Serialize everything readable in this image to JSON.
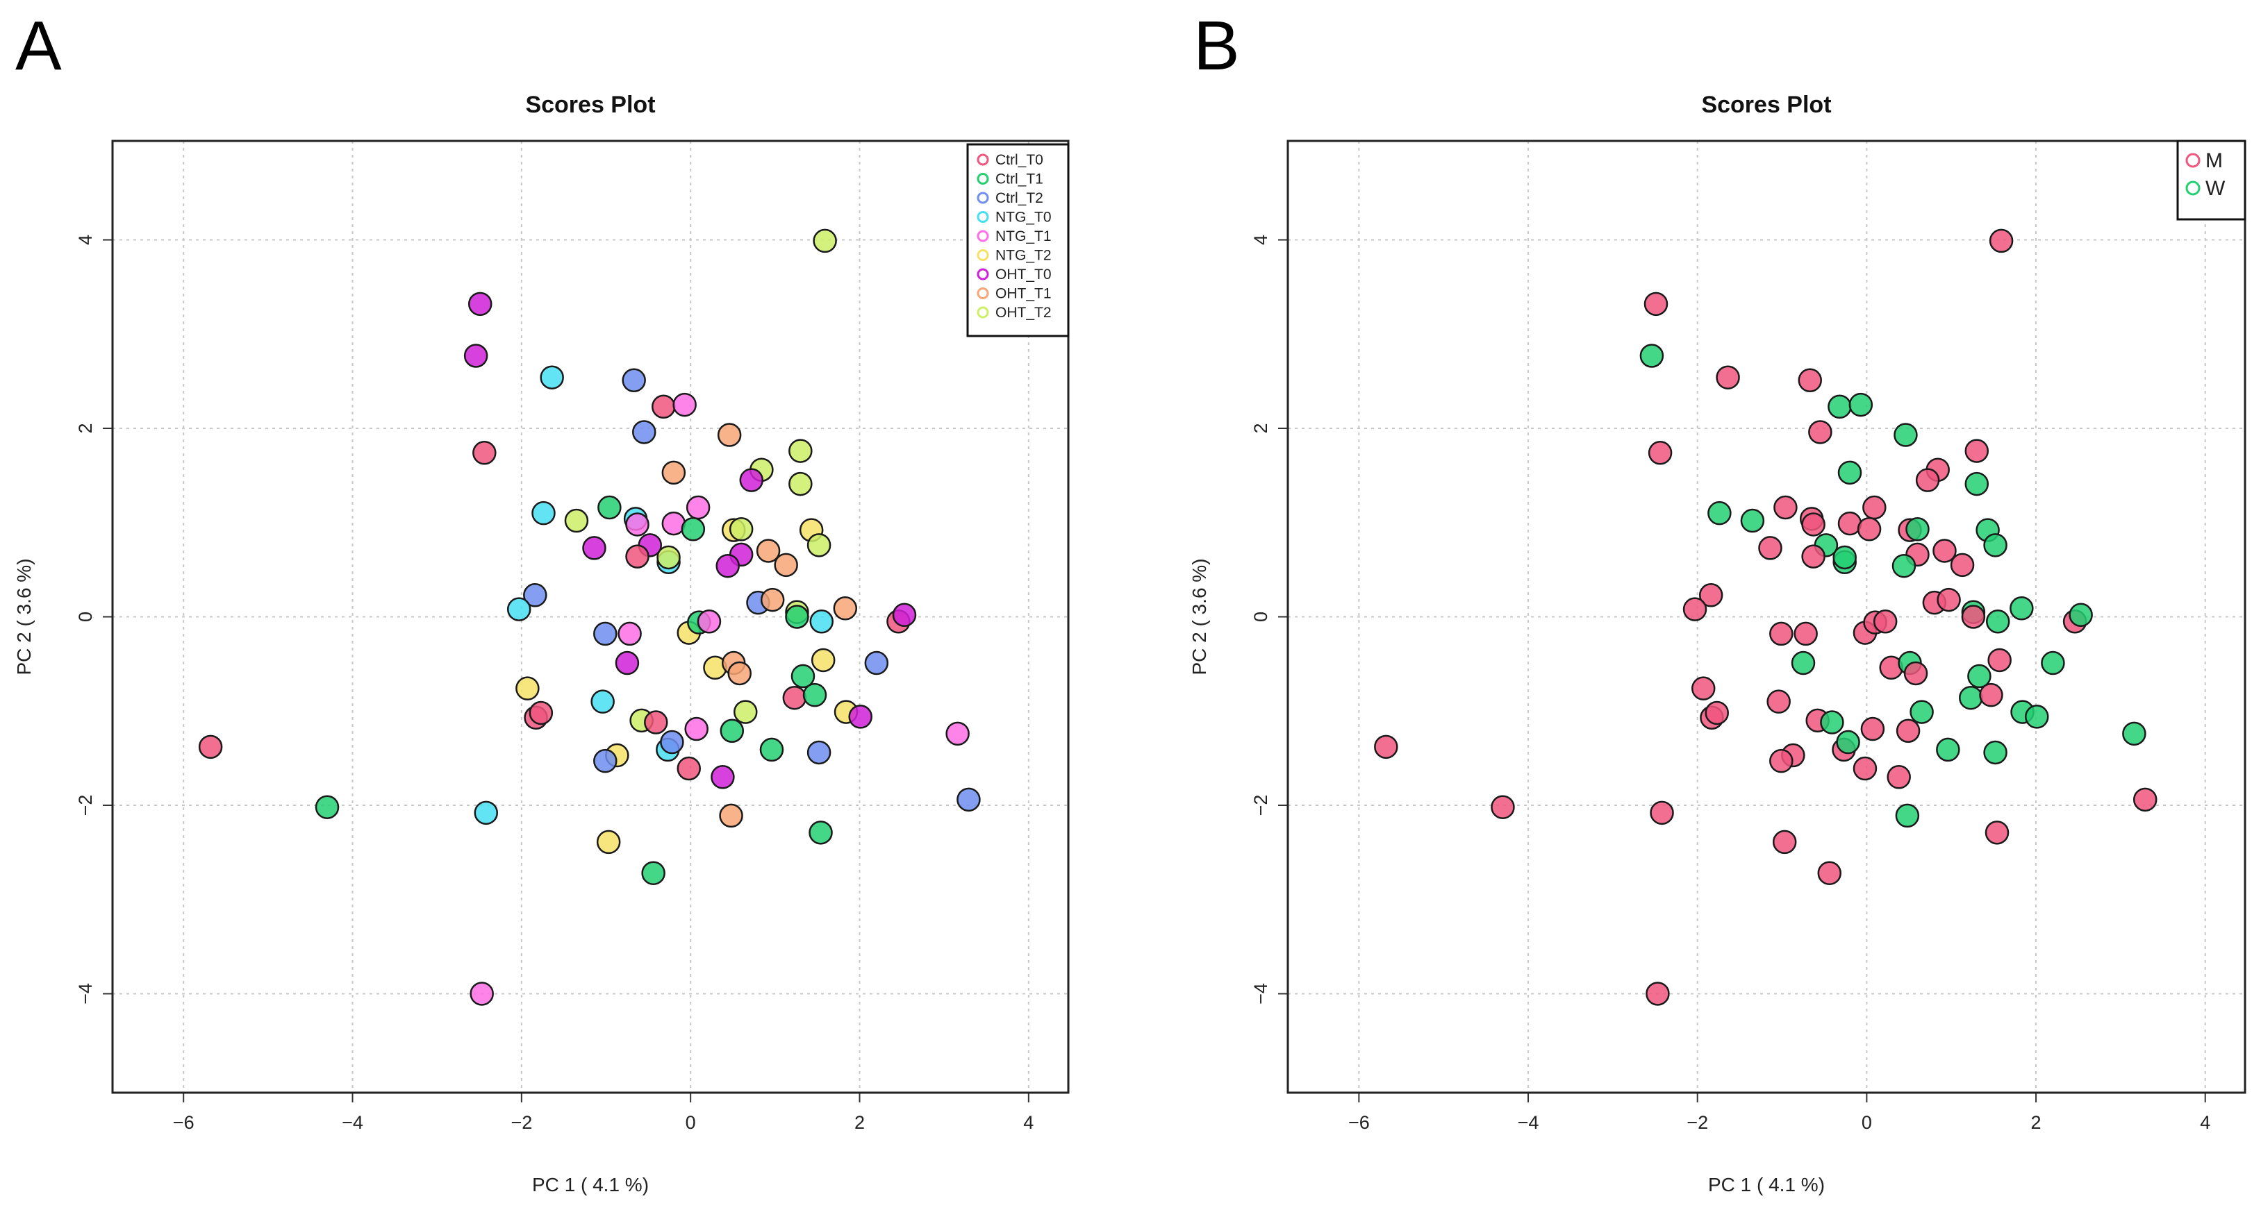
{
  "chart_data": [
    {
      "panel": "A",
      "type": "scatter",
      "title": "Scores Plot",
      "xlabel": "PC 1 ( 4.1 %)",
      "ylabel": "PC 2 ( 3.6 %)",
      "xlim": [
        -6.84,
        4.47
      ],
      "ylim": [
        -5.05,
        5.05
      ],
      "xticks": [
        -6,
        -4,
        -2,
        0,
        2,
        4
      ],
      "yticks": [
        -4,
        -2,
        0,
        2,
        4
      ],
      "grid": true,
      "legend_position": "top-right",
      "groups": [
        "Ctrl_T0",
        "Ctrl_T1",
        "Ctrl_T2",
        "NTG_T0",
        "NTG_T1",
        "NTG_T2",
        "OHT_T0",
        "OHT_T1",
        "OHT_T2"
      ],
      "colors": [
        "#f0567e",
        "#22d072",
        "#6e8ef0",
        "#46dff2",
        "#ff6ee6",
        "#f6e166",
        "#d021d8",
        "#f7a676",
        "#cdef66"
      ],
      "group_key": "group"
    },
    {
      "panel": "B",
      "type": "scatter",
      "title": "Scores Plot",
      "xlabel": "PC 1 ( 4.1 %)",
      "ylabel": "PC 2 ( 3.6 %)",
      "xlim": [
        -6.84,
        4.47
      ],
      "ylim": [
        -5.05,
        5.05
      ],
      "xticks": [
        -6,
        -4,
        -2,
        0,
        2,
        4
      ],
      "yticks": [
        -4,
        -2,
        0,
        2,
        4
      ],
      "grid": true,
      "legend_position": "top-right",
      "groups": [
        "M",
        "W"
      ],
      "colors": [
        "#f0567e",
        "#22d072"
      ],
      "group_key": "sex"
    }
  ],
  "points": [
    [
      1.59,
      3.99,
      8,
      "M"
    ],
    [
      -2.49,
      3.32,
      6,
      "M"
    ],
    [
      -2.54,
      2.77,
      6,
      "W"
    ],
    [
      -1.64,
      2.54,
      3,
      "M"
    ],
    [
      -0.67,
      2.51,
      2,
      "M"
    ],
    [
      -0.32,
      2.23,
      0,
      "W"
    ],
    [
      -0.07,
      2.25,
      4,
      "W"
    ],
    [
      -0.55,
      1.96,
      2,
      "M"
    ],
    [
      0.46,
      1.93,
      7,
      "W"
    ],
    [
      -2.44,
      1.74,
      0,
      "M"
    ],
    [
      1.3,
      1.76,
      8,
      "M"
    ],
    [
      0.84,
      1.56,
      8,
      "M"
    ],
    [
      -0.2,
      1.53,
      7,
      "W"
    ],
    [
      0.72,
      1.45,
      6,
      "M"
    ],
    [
      1.3,
      1.41,
      8,
      "W"
    ],
    [
      -1.74,
      1.1,
      3,
      "W"
    ],
    [
      -1.35,
      1.02,
      8,
      "W"
    ],
    [
      -0.96,
      1.16,
      1,
      "M"
    ],
    [
      -0.65,
      1.04,
      3,
      "M"
    ],
    [
      -0.63,
      0.98,
      4,
      "M"
    ],
    [
      -0.2,
      0.99,
      4,
      "M"
    ],
    [
      0.09,
      1.16,
      4,
      "M"
    ],
    [
      0.03,
      0.93,
      1,
      "M"
    ],
    [
      -1.14,
      0.73,
      6,
      "M"
    ],
    [
      -0.48,
      0.76,
      6,
      "W"
    ],
    [
      -0.63,
      0.64,
      0,
      "M"
    ],
    [
      -0.26,
      0.58,
      3,
      "W"
    ],
    [
      -0.26,
      0.63,
      8,
      "W"
    ],
    [
      0.51,
      0.92,
      5,
      "M"
    ],
    [
      0.6,
      0.93,
      8,
      "W"
    ],
    [
      1.43,
      0.92,
      5,
      "W"
    ],
    [
      1.52,
      0.76,
      8,
      "W"
    ],
    [
      0.92,
      0.7,
      7,
      "M"
    ],
    [
      1.13,
      0.55,
      7,
      "M"
    ],
    [
      0.6,
      0.66,
      6,
      "M"
    ],
    [
      0.44,
      0.54,
      6,
      "W"
    ],
    [
      -1.84,
      0.23,
      2,
      "M"
    ],
    [
      -2.03,
      0.08,
      3,
      "M"
    ],
    [
      0.8,
      0.15,
      2,
      "M"
    ],
    [
      0.97,
      0.18,
      7,
      "M"
    ],
    [
      1.26,
      0.05,
      8,
      "W"
    ],
    [
      1.26,
      0.0,
      1,
      "M"
    ],
    [
      1.55,
      -0.05,
      3,
      "W"
    ],
    [
      1.83,
      0.09,
      7,
      "W"
    ],
    [
      2.46,
      -0.05,
      0,
      "M"
    ],
    [
      2.53,
      0.02,
      6,
      "W"
    ],
    [
      -1.01,
      -0.18,
      2,
      "M"
    ],
    [
      -0.72,
      -0.18,
      4,
      "M"
    ],
    [
      -0.02,
      -0.17,
      5,
      "M"
    ],
    [
      0.1,
      -0.06,
      1,
      "M"
    ],
    [
      0.22,
      -0.05,
      4,
      "M"
    ],
    [
      -0.75,
      -0.49,
      6,
      "W"
    ],
    [
      0.29,
      -0.54,
      5,
      "M"
    ],
    [
      0.51,
      -0.49,
      7,
      "W"
    ],
    [
      0.58,
      -0.6,
      7,
      "M"
    ],
    [
      1.57,
      -0.46,
      5,
      "M"
    ],
    [
      2.2,
      -0.49,
      2,
      "W"
    ],
    [
      1.33,
      -0.63,
      1,
      "W"
    ],
    [
      -1.93,
      -0.76,
      5,
      "M"
    ],
    [
      1.23,
      -0.86,
      0,
      "W"
    ],
    [
      1.47,
      -0.83,
      1,
      "M"
    ],
    [
      -1.04,
      -0.9,
      3,
      "M"
    ],
    [
      -1.83,
      -1.07,
      0,
      "M"
    ],
    [
      -1.77,
      -1.02,
      0,
      "M"
    ],
    [
      -0.58,
      -1.1,
      8,
      "M"
    ],
    [
      -0.41,
      -1.12,
      0,
      "W"
    ],
    [
      0.65,
      -1.01,
      8,
      "W"
    ],
    [
      1.84,
      -1.01,
      5,
      "W"
    ],
    [
      2.01,
      -1.06,
      6,
      "W"
    ],
    [
      0.07,
      -1.19,
      4,
      "M"
    ],
    [
      0.49,
      -1.21,
      1,
      "M"
    ],
    [
      3.16,
      -1.24,
      4,
      "W"
    ],
    [
      -5.68,
      -1.38,
      0,
      "M"
    ],
    [
      -0.87,
      -1.47,
      5,
      "M"
    ],
    [
      -1.01,
      -1.53,
      2,
      "M"
    ],
    [
      -0.27,
      -1.41,
      3,
      "M"
    ],
    [
      -0.22,
      -1.33,
      2,
      "W"
    ],
    [
      0.96,
      -1.41,
      1,
      "W"
    ],
    [
      1.52,
      -1.44,
      2,
      "W"
    ],
    [
      -0.02,
      -1.61,
      0,
      "M"
    ],
    [
      0.38,
      -1.7,
      6,
      "M"
    ],
    [
      3.29,
      -1.94,
      2,
      "M"
    ],
    [
      -4.3,
      -2.02,
      1,
      "M"
    ],
    [
      -2.42,
      -2.08,
      3,
      "M"
    ],
    [
      0.48,
      -2.11,
      7,
      "W"
    ],
    [
      -0.97,
      -2.39,
      5,
      "M"
    ],
    [
      1.54,
      -2.29,
      1,
      "M"
    ],
    [
      -0.44,
      -2.72,
      1,
      "M"
    ],
    [
      -2.47,
      -4.0,
      4,
      "M"
    ]
  ],
  "panel_labels": [
    "A",
    "B"
  ]
}
